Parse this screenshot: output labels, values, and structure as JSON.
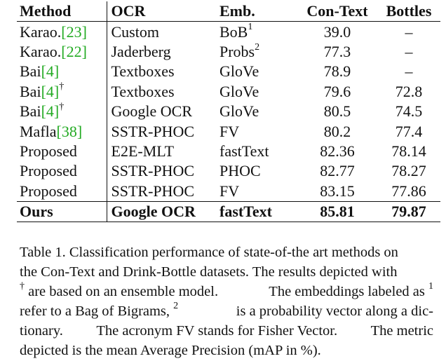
{
  "table": {
    "headers": [
      "Method",
      "OCR",
      "Emb.",
      "Con-Text",
      "Bottles"
    ],
    "rows": [
      {
        "method": "Karao.",
        "ref": "[23]",
        "dagger": "",
        "ocr": "Custom",
        "emb": "BoB",
        "emb_sup": "1",
        "context": "39.0",
        "bottles": "–"
      },
      {
        "method": "Karao.",
        "ref": "[22]",
        "dagger": "",
        "ocr": "Jaderberg",
        "emb": "Probs",
        "emb_sup": "2",
        "context": "77.3",
        "bottles": "–"
      },
      {
        "method": "Bai",
        "ref": "[4]",
        "dagger": "",
        "ocr": "Textboxes",
        "emb": "GloVe",
        "emb_sup": "",
        "context": "78.9",
        "bottles": "–"
      },
      {
        "method": "Bai",
        "ref": "[4]",
        "dagger": "†",
        "ocr": "Textboxes",
        "emb": "GloVe",
        "emb_sup": "",
        "context": "79.6",
        "bottles": "72.8"
      },
      {
        "method": "Bai",
        "ref": "[4]",
        "dagger": "†",
        "ocr": "Google OCR",
        "emb": "GloVe",
        "emb_sup": "",
        "context": "80.5",
        "bottles": "74.5"
      },
      {
        "method": "Mafla",
        "ref": "[38]",
        "dagger": "",
        "ocr": "SSTR-PHOC",
        "emb": "FV",
        "emb_sup": "",
        "context": "80.2",
        "bottles": "77.4"
      },
      {
        "method": "Proposed",
        "ref": "",
        "dagger": "",
        "ocr": "E2E-MLT",
        "emb": "fastText",
        "emb_sup": "",
        "context": "82.36",
        "bottles": "78.14"
      },
      {
        "method": "Proposed",
        "ref": "",
        "dagger": "",
        "ocr": "SSTR-PHOC",
        "emb": "PHOC",
        "emb_sup": "",
        "context": "82.77",
        "bottles": "78.27"
      },
      {
        "method": "Proposed",
        "ref": "",
        "dagger": "",
        "ocr": "SSTR-PHOC",
        "emb": "FV",
        "emb_sup": "",
        "context": "83.15",
        "bottles": "77.86"
      }
    ],
    "final_row": {
      "method": "Ours",
      "ocr": "Google OCR",
      "emb": "fastText",
      "context": "85.81",
      "bottles": "79.87"
    }
  },
  "caption": {
    "line1": "Table 1. Classification performance of state-of-the art methods on",
    "line2": "the Con-Text and Drink-Bottle datasets. The results depicted with",
    "line3_sup": "†",
    "line3_a": "are based on an ensemble model.",
    "line3_b": "The embeddings labeled as",
    "line3_sup2": "1",
    "line4_a": "refer to a Bag of Bigrams,",
    "line4_sup": "2",
    "line4_b": "is a probability vector along a dic-",
    "line5_a": "tionary.",
    "line5_b": "The acronym FV stands for Fisher Vector.",
    "line5_c": "The metric",
    "line6": "depicted is the mean Average Precision (mAP in %)."
  },
  "colors": {
    "reference_link": "#22aa22",
    "text": "#111111"
  }
}
